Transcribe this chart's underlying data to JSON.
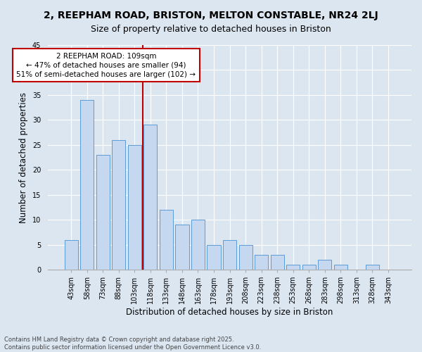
{
  "title": "2, REEPHAM ROAD, BRISTON, MELTON CONSTABLE, NR24 2LJ",
  "subtitle": "Size of property relative to detached houses in Briston",
  "xlabel": "Distribution of detached houses by size in Briston",
  "ylabel": "Number of detached properties",
  "categories": [
    "43sqm",
    "58sqm",
    "73sqm",
    "88sqm",
    "103sqm",
    "118sqm",
    "133sqm",
    "148sqm",
    "163sqm",
    "178sqm",
    "193sqm",
    "208sqm",
    "223sqm",
    "238sqm",
    "253sqm",
    "268sqm",
    "283sqm",
    "298sqm",
    "313sqm",
    "328sqm",
    "343sqm"
  ],
  "values": [
    6,
    34,
    23,
    26,
    25,
    29,
    12,
    9,
    10,
    5,
    6,
    5,
    3,
    3,
    1,
    1,
    2,
    1,
    0,
    1,
    0
  ],
  "bar_color": "#c5d8f0",
  "bar_edge_color": "#5b9bd5",
  "vline_index": 4.5,
  "vline_color": "#c00000",
  "annotation_text": "2 REEPHAM ROAD: 109sqm\n← 47% of detached houses are smaller (94)\n51% of semi-detached houses are larger (102) →",
  "annotation_box_color": "#ffffff",
  "annotation_box_edge_color": "#c00000",
  "bg_color": "#dce6f1",
  "plot_bg_color": "#dce6f1",
  "footer": "Contains HM Land Registry data © Crown copyright and database right 2025.\nContains public sector information licensed under the Open Government Licence v3.0.",
  "ylim": [
    0,
    45
  ],
  "yticks": [
    0,
    5,
    10,
    15,
    20,
    25,
    30,
    35,
    40,
    45
  ],
  "title_fontsize": 10,
  "subtitle_fontsize": 9,
  "axis_label_fontsize": 8.5,
  "tick_fontsize": 7,
  "annotation_fontsize": 7.5,
  "footer_fontsize": 6
}
